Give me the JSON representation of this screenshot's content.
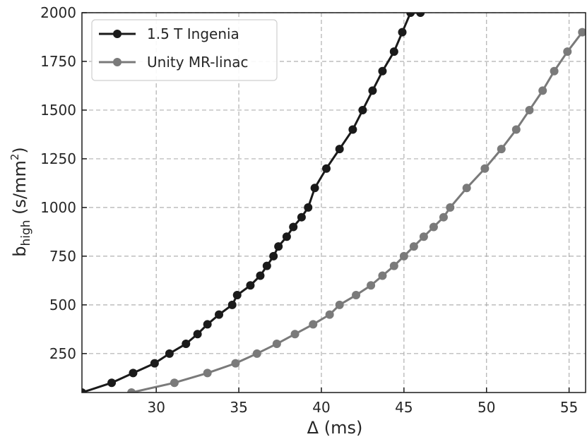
{
  "chart_data": {
    "type": "line",
    "xlabel": "Δ (ms)",
    "ylabel_main": "b",
    "ylabel_sub": "high",
    "ylabel_unit_pre": " (s/mm",
    "ylabel_unit_sup": "2",
    "ylabel_unit_post": ")",
    "xlim": [
      25.5,
      56
    ],
    "ylim": [
      50,
      2000
    ],
    "xticks": [
      30,
      35,
      40,
      45,
      50,
      55
    ],
    "yticks": [
      250,
      500,
      750,
      1000,
      1250,
      1500,
      1750,
      2000
    ],
    "grid": true,
    "legend_position": "top-left",
    "series": [
      {
        "name": "1.5 T Ingenia",
        "color": "#1a1a1a",
        "x": [
          25.5,
          27.3,
          28.6,
          29.9,
          30.8,
          31.8,
          32.5,
          33.1,
          33.8,
          34.6,
          34.9,
          35.7,
          36.3,
          36.7,
          37.1,
          37.4,
          37.9,
          38.3,
          38.8,
          39.2,
          39.6,
          40.3,
          41.1,
          41.9,
          42.5,
          43.1,
          43.7,
          44.4,
          44.9,
          45.4,
          46.0
        ],
        "y": [
          50,
          100,
          150,
          200,
          250,
          300,
          350,
          400,
          450,
          500,
          550,
          600,
          650,
          700,
          750,
          800,
          850,
          900,
          950,
          1000,
          1100,
          1200,
          1300,
          1400,
          1500,
          1600,
          1700,
          1800,
          1900,
          2000,
          2000
        ]
      },
      {
        "name": "Unity MR-linac",
        "color": "#7a7a7a",
        "x": [
          28.5,
          31.1,
          33.1,
          34.8,
          36.1,
          37.3,
          38.4,
          39.5,
          40.5,
          41.1,
          42.1,
          43.0,
          43.7,
          44.4,
          45.0,
          45.6,
          46.2,
          46.8,
          47.4,
          47.8,
          48.8,
          49.9,
          50.9,
          51.8,
          52.6,
          53.4,
          54.1,
          54.9,
          55.8
        ],
        "y": [
          50,
          100,
          150,
          200,
          250,
          300,
          350,
          400,
          450,
          500,
          550,
          600,
          650,
          700,
          750,
          800,
          850,
          900,
          950,
          1000,
          1100,
          1200,
          1300,
          1400,
          1500,
          1600,
          1700,
          1800,
          1900
        ]
      }
    ]
  }
}
